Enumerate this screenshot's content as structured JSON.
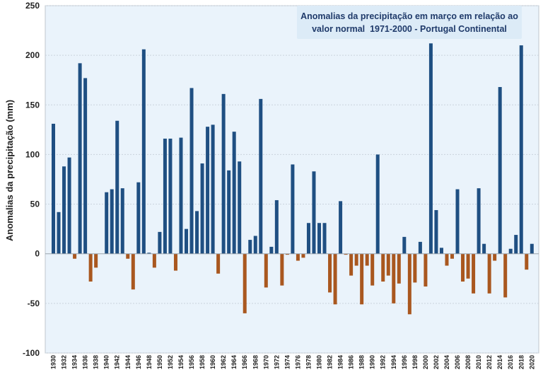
{
  "chart_data": {
    "type": "bar",
    "title_line1": "Anomalias da precipitação em março em relação ao",
    "title_line2": "valor normal  1971-2000 - Portugal Continental",
    "ylabel": "Anomalias da precipitação (mm)",
    "xlabel": "",
    "ylim": [
      -100,
      250
    ],
    "yticks": [
      -100,
      -50,
      0,
      50,
      100,
      150,
      200,
      250
    ],
    "xticks": [
      1930,
      1932,
      1934,
      1936,
      1938,
      1940,
      1942,
      1944,
      1946,
      1948,
      1950,
      1952,
      1954,
      1956,
      1958,
      1960,
      1962,
      1964,
      1966,
      1968,
      1970,
      1972,
      1974,
      1976,
      1978,
      1980,
      1982,
      1984,
      1986,
      1988,
      1990,
      1992,
      1994,
      1996,
      1998,
      2000,
      2002,
      2004,
      2006,
      2008,
      2010,
      2012,
      2014,
      2016,
      2018,
      2020
    ],
    "grid": true,
    "positive_color": "#1f4f82",
    "negative_color": "#a9571f",
    "plot_background": "#eaf3fb",
    "years": [
      1930,
      1931,
      1932,
      1933,
      1934,
      1935,
      1936,
      1937,
      1938,
      1939,
      1940,
      1941,
      1942,
      1943,
      1944,
      1945,
      1946,
      1947,
      1948,
      1949,
      1950,
      1951,
      1952,
      1953,
      1954,
      1955,
      1956,
      1957,
      1958,
      1959,
      1960,
      1961,
      1962,
      1963,
      1964,
      1965,
      1966,
      1967,
      1968,
      1969,
      1970,
      1971,
      1972,
      1973,
      1974,
      1975,
      1976,
      1977,
      1978,
      1979,
      1980,
      1981,
      1982,
      1983,
      1984,
      1985,
      1986,
      1987,
      1988,
      1989,
      1990,
      1991,
      1992,
      1993,
      1994,
      1995,
      1996,
      1997,
      1998,
      1999,
      2000,
      2001,
      2002,
      2003,
      2004,
      2005,
      2006,
      2007,
      2008,
      2009,
      2010,
      2011,
      2012,
      2013,
      2014,
      2015,
      2016,
      2017,
      2018,
      2019,
      2020
    ],
    "values": [
      131,
      42,
      88,
      97,
      -5,
      192,
      177,
      -28,
      -14,
      0,
      62,
      65,
      134,
      66,
      -5,
      -36,
      72,
      206,
      1,
      -14,
      22,
      116,
      116,
      -17,
      117,
      25,
      167,
      43,
      91,
      128,
      130,
      -20,
      161,
      84,
      123,
      93,
      -60,
      14,
      18,
      156,
      -34,
      7,
      54,
      -32,
      -1,
      90,
      -7,
      -4,
      31,
      83,
      31,
      31,
      -39,
      -51,
      53,
      -1,
      -22,
      -12,
      -51,
      -12,
      -32,
      100,
      -28,
      -22,
      -50,
      -30,
      17,
      -61,
      -29,
      12,
      -33,
      212,
      44,
      6,
      -12,
      -5,
      65,
      -28,
      -25,
      -40,
      66,
      10,
      -40,
      -7,
      168,
      -44,
      5,
      19,
      210,
      -16,
      10
    ]
  }
}
